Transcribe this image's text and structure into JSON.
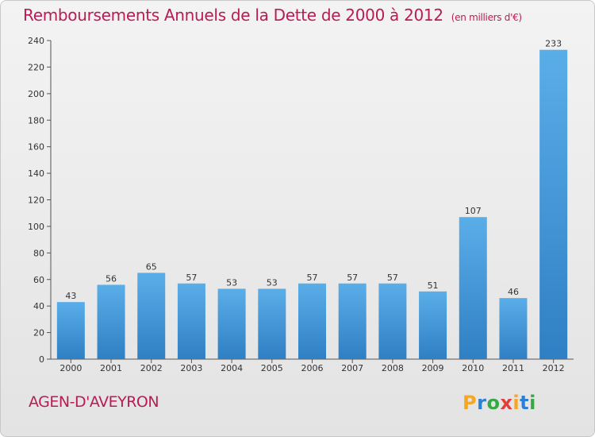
{
  "header": {
    "title": "Remboursements Annuels de la Dette de 2000 à 2012",
    "unit_note": "(en milliers d'€)"
  },
  "footer": {
    "commune": "AGEN-D'AVEYRON",
    "logo_text": "Proxiti",
    "logo_colors": [
      "#f5a623",
      "#2b7fd4",
      "#38a845",
      "#e43b3b",
      "#f5a623",
      "#2b7fd4",
      "#38a845"
    ]
  },
  "chart_data": {
    "type": "bar",
    "title": "Remboursements Annuels de la Dette de 2000 à 2012",
    "subtitle": "(en milliers d'€)",
    "categories": [
      "2000",
      "2001",
      "2002",
      "2003",
      "2004",
      "2005",
      "2006",
      "2007",
      "2008",
      "2009",
      "2010",
      "2011",
      "2012"
    ],
    "values": [
      43,
      56,
      65,
      57,
      53,
      53,
      57,
      57,
      57,
      51,
      107,
      46,
      233
    ],
    "ylim": [
      0,
      240
    ],
    "yticks": [
      0,
      20,
      40,
      60,
      80,
      100,
      120,
      140,
      160,
      180,
      200,
      220,
      240
    ],
    "grid": false,
    "bar_color_top": "#5aaee8",
    "bar_color_bottom": "#2f7fc4"
  }
}
